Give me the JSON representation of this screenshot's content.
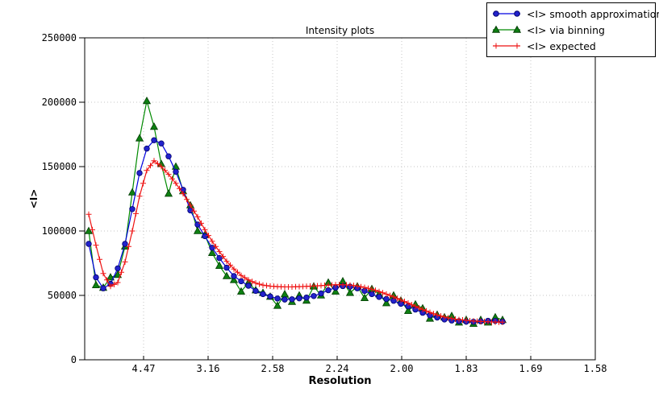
{
  "chart_data": {
    "type": "line",
    "title": "Intensity plots",
    "xlabel": "Resolution",
    "ylabel": "<I>",
    "grid": true,
    "legend_position": "top-right-outside",
    "ylim": [
      0,
      250000
    ],
    "xlim_s": [
      0.00438,
      0.4
    ],
    "y_ticks": [
      {
        "label": "0",
        "value": 0
      },
      {
        "label": "50000",
        "value": 50000
      },
      {
        "label": "100000",
        "value": 100000
      },
      {
        "label": "150000",
        "value": 150000
      },
      {
        "label": "200000",
        "value": 200000
      },
      {
        "label": "250000",
        "value": 250000
      }
    ],
    "x_ticks": [
      {
        "label": "4.47",
        "s": 0.05
      },
      {
        "label": "3.16",
        "s": 0.1
      },
      {
        "label": "2.58",
        "s": 0.15
      },
      {
        "label": "2.24",
        "s": 0.2
      },
      {
        "label": "2.00",
        "s": 0.25
      },
      {
        "label": "1.83",
        "s": 0.3
      },
      {
        "label": "1.69",
        "s": 0.35
      },
      {
        "label": "1.58",
        "s": 0.4
      }
    ],
    "x_unit_note": "s = 1/d^2, tick labels are d in Angstrom",
    "x": [
      0.0075,
      0.013125,
      0.01875,
      0.024375,
      0.03,
      0.035625,
      0.04125,
      0.046875,
      0.0525,
      0.058125,
      0.06375,
      0.069375,
      0.075,
      0.080625,
      0.08625,
      0.091875,
      0.0975,
      0.103125,
      0.10875,
      0.114375,
      0.12,
      0.125625,
      0.13125,
      0.136875,
      0.1425,
      0.148125,
      0.15375,
      0.159375,
      0.165,
      0.170625,
      0.17625,
      0.181875,
      0.1875,
      0.193125,
      0.19875,
      0.204375,
      0.21,
      0.215625,
      0.22125,
      0.226875,
      0.2325,
      0.238125,
      0.24375,
      0.249375,
      0.255,
      0.260625,
      0.26625,
      0.271875,
      0.2775,
      0.283125,
      0.28875,
      0.294375,
      0.3,
      0.305625,
      0.31125,
      0.316875,
      0.3225,
      0.328125
    ],
    "series": [
      {
        "name": "<I> smooth approximation",
        "marker": "circle",
        "marker_fill": "#2222cc",
        "marker_edge": "#00006b",
        "line_color": "#0000e0",
        "values": [
          90000,
          64000,
          55500,
          59000,
          71000,
          90000,
          117000,
          145000,
          164000,
          170500,
          168000,
          158000,
          146000,
          132000,
          116000,
          105000,
          96000,
          87000,
          79000,
          71500,
          65000,
          61000,
          57500,
          53500,
          51000,
          49200,
          47600,
          46800,
          47000,
          47700,
          48300,
          49500,
          51500,
          54000,
          56000,
          57200,
          56800,
          55500,
          53500,
          51000,
          48800,
          47200,
          45800,
          43500,
          41500,
          39000,
          36500,
          34500,
          32800,
          31300,
          30500,
          30000,
          29600,
          29500,
          29800,
          30300,
          30200,
          29600
        ]
      },
      {
        "name": "<I> via binning",
        "marker": "triangle",
        "marker_fill": "#0e8012",
        "marker_edge": "#033d05",
        "line_color": "#008a00",
        "values": [
          100000,
          58000,
          56000,
          64000,
          66000,
          88000,
          130000,
          172000,
          201000,
          181000,
          152000,
          129000,
          150000,
          131000,
          120000,
          100000,
          97000,
          83000,
          73000,
          65000,
          62000,
          53000,
          60000,
          54000,
          52000,
          49000,
          42000,
          51000,
          45000,
          50000,
          46000,
          57000,
          50000,
          60000,
          53000,
          61000,
          52000,
          57000,
          48000,
          55000,
          51000,
          44000,
          50000,
          46000,
          38000,
          43000,
          40000,
          32000,
          35000,
          33000,
          34000,
          29000,
          31000,
          28000,
          31000,
          29000,
          33000,
          31000
        ]
      },
      {
        "name": "<I> expected",
        "marker": "plus",
        "marker_fill": "#ee1111",
        "marker_edge": "#ee1111",
        "line_color": "#ee1111",
        "dense_markers": true,
        "values": [
          113000,
          89000,
          67000,
          57000,
          60000,
          76000,
          100000,
          127000,
          147000,
          154500,
          150000,
          144000,
          137000,
          129000,
          120000,
          111000,
          101000,
          92000,
          84000,
          76500,
          70500,
          65500,
          62000,
          59500,
          58000,
          57200,
          56800,
          56600,
          56600,
          56800,
          57000,
          57300,
          57600,
          58000,
          58300,
          58300,
          58000,
          57300,
          56200,
          54800,
          53000,
          51000,
          48800,
          46400,
          44000,
          41500,
          39000,
          36800,
          34800,
          33200,
          32000,
          31200,
          30600,
          30100,
          29800,
          29500,
          29300,
          29200
        ]
      }
    ],
    "colors": {
      "grid": "#c4c4c4",
      "frame": "#000000",
      "background": "#ffffff",
      "tick_text": "#000000"
    }
  }
}
